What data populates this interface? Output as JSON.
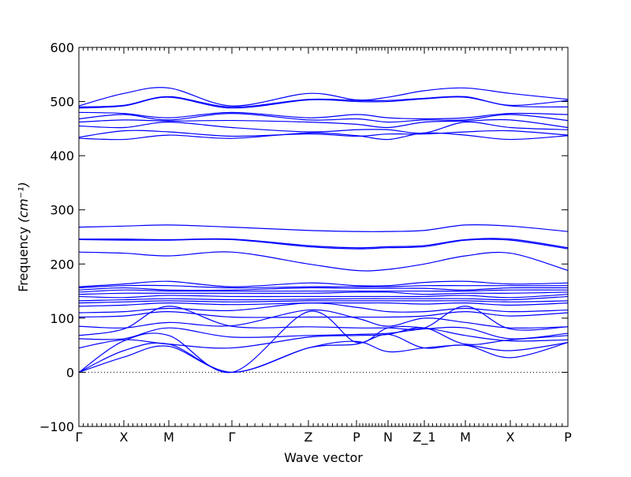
{
  "chart_data": {
    "type": "line",
    "title": "",
    "xlabel": "Wave vector",
    "ylabel": "Frequency ",
    "ylabel_unit": "(cm⁻¹)",
    "ylim": [
      -100,
      600
    ],
    "xlim": [
      0,
      620
    ],
    "y_ticks": [
      -100,
      0,
      100,
      200,
      300,
      400,
      500,
      600
    ],
    "zero_line": {
      "y": 0,
      "style": "dotted"
    },
    "grid": false,
    "legend": "none",
    "line_color": "#0000ff",
    "high_symmetry_points": [
      {
        "label": "Γ",
        "x": 0
      },
      {
        "label": "X",
        "x": 57
      },
      {
        "label": "M",
        "x": 114
      },
      {
        "label": "Γ",
        "x": 194
      },
      {
        "label": "Z",
        "x": 291
      },
      {
        "label": "P",
        "x": 352
      },
      {
        "label": "N",
        "x": 392
      },
      {
        "label": "Z_1",
        "x": 438
      },
      {
        "label": "M",
        "x": 490
      },
      {
        "label": "X",
        "x": 547
      },
      {
        "label": "P",
        "x": 620
      }
    ],
    "series": [
      {
        "x": [
          0,
          57,
          114,
          194,
          291,
          352,
          392,
          438,
          490,
          547,
          620
        ],
        "values": [
          0,
          28,
          48,
          0,
          45,
          52,
          70,
          45,
          50,
          27,
          55
        ]
      },
      {
        "x": [
          0,
          57,
          114,
          194,
          291,
          352,
          392,
          438,
          490,
          547,
          620
        ],
        "values": [
          0,
          40,
          52,
          0,
          45,
          57,
          38,
          45,
          50,
          40,
          55
        ]
      },
      {
        "x": [
          0,
          57,
          114,
          194,
          291,
          352,
          392,
          438,
          490,
          547,
          620
        ],
        "values": [
          0,
          58,
          68,
          0,
          112,
          55,
          82,
          82,
          68,
          58,
          60
        ]
      },
      {
        "x": [
          0,
          57,
          114,
          194,
          291,
          352,
          392,
          438,
          490,
          547,
          620
        ],
        "values": [
          45,
          60,
          52,
          45,
          65,
          68,
          70,
          82,
          52,
          60,
          68
        ]
      },
      {
        "x": [
          0,
          57,
          114,
          194,
          291,
          352,
          392,
          438,
          490,
          547,
          620
        ],
        "values": [
          62,
          62,
          82,
          65,
          68,
          70,
          72,
          80,
          82,
          62,
          72
        ]
      },
      {
        "x": [
          0,
          57,
          114,
          194,
          291,
          352,
          392,
          438,
          490,
          547,
          620
        ],
        "values": [
          68,
          80,
          122,
          85,
          84,
          82,
          82,
          82,
          122,
          80,
          84
        ]
      },
      {
        "x": [
          0,
          57,
          114,
          194,
          291,
          352,
          392,
          438,
          490,
          547,
          620
        ],
        "values": [
          85,
          82,
          92,
          86,
          115,
          100,
          85,
          100,
          92,
          82,
          84
        ]
      },
      {
        "x": [
          0,
          57,
          114,
          194,
          291,
          352,
          392,
          438,
          490,
          547,
          620
        ],
        "values": [
          102,
          104,
          112,
          102,
          102,
          102,
          102,
          104,
          112,
          104,
          110
        ]
      },
      {
        "x": [
          0,
          57,
          114,
          194,
          291,
          352,
          392,
          438,
          490,
          547,
          620
        ],
        "values": [
          110,
          112,
          118,
          114,
          128,
          120,
          112,
          112,
          118,
          112,
          115
        ]
      },
      {
        "x": [
          0,
          57,
          114,
          194,
          291,
          352,
          392,
          438,
          490,
          547,
          620
        ],
        "values": [
          122,
          124,
          128,
          125,
          128,
          128,
          128,
          126,
          128,
          124,
          128
        ]
      },
      {
        "x": [
          0,
          57,
          114,
          194,
          291,
          352,
          392,
          438,
          490,
          547,
          620
        ],
        "values": [
          128,
          130,
          132,
          130,
          132,
          132,
          132,
          132,
          132,
          130,
          132
        ]
      },
      {
        "x": [
          0,
          57,
          114,
          194,
          291,
          352,
          392,
          438,
          490,
          547,
          620
        ],
        "values": [
          132,
          134,
          136,
          134,
          135,
          136,
          136,
          136,
          136,
          134,
          140
        ]
      },
      {
        "x": [
          0,
          57,
          114,
          194,
          291,
          352,
          392,
          438,
          490,
          547,
          620
        ],
        "values": [
          140,
          138,
          142,
          140,
          140,
          140,
          140,
          140,
          142,
          138,
          144
        ]
      },
      {
        "x": [
          0,
          57,
          114,
          194,
          291,
          352,
          392,
          438,
          490,
          547,
          620
        ],
        "values": [
          144,
          146,
          146,
          146,
          146,
          148,
          148,
          144,
          146,
          146,
          148
        ]
      },
      {
        "x": [
          0,
          57,
          114,
          194,
          291,
          352,
          392,
          438,
          490,
          547,
          620
        ],
        "values": [
          148,
          152,
          150,
          150,
          150,
          150,
          150,
          150,
          150,
          152,
          152
        ]
      },
      {
        "x": [
          0,
          57,
          114,
          194,
          291,
          352,
          392,
          438,
          490,
          547,
          620
        ],
        "values": [
          152,
          156,
          152,
          152,
          156,
          155,
          155,
          155,
          152,
          156,
          156
        ]
      },
      {
        "x": [
          0,
          57,
          114,
          194,
          291,
          352,
          392,
          438,
          490,
          547,
          620
        ],
        "values": [
          156,
          160,
          160,
          156,
          158,
          158,
          158,
          160,
          160,
          160,
          160
        ]
      },
      {
        "x": [
          0,
          57,
          114,
          194,
          291,
          352,
          392,
          438,
          490,
          547,
          620
        ],
        "values": [
          158,
          163,
          168,
          158,
          165,
          160,
          160,
          166,
          168,
          163,
          165
        ]
      },
      {
        "x": [
          0,
          57,
          114,
          194,
          291,
          352,
          392,
          438,
          490,
          547,
          620
        ],
        "values": [
          222,
          220,
          215,
          222,
          200,
          188,
          190,
          200,
          215,
          220,
          188
        ]
      },
      {
        "x": [
          0,
          57,
          114,
          194,
          291,
          352,
          392,
          438,
          490,
          547,
          620
        ],
        "values": [
          245,
          244,
          244,
          245,
          232,
          228,
          230,
          232,
          244,
          244,
          228
        ]
      },
      {
        "x": [
          0,
          57,
          114,
          194,
          291,
          352,
          392,
          438,
          490,
          547,
          620
        ],
        "values": [
          246,
          246,
          245,
          246,
          234,
          230,
          232,
          234,
          245,
          246,
          230
        ]
      },
      {
        "x": [
          0,
          57,
          114,
          194,
          291,
          352,
          392,
          438,
          490,
          547,
          620
        ],
        "values": [
          268,
          270,
          272,
          268,
          262,
          260,
          260,
          262,
          272,
          270,
          260
        ]
      },
      {
        "x": [
          0,
          57,
          114,
          194,
          291,
          352,
          392,
          438,
          490,
          547,
          620
        ],
        "values": [
          432,
          430,
          438,
          432,
          442,
          437,
          430,
          442,
          438,
          430,
          437
        ]
      },
      {
        "x": [
          0,
          57,
          114,
          194,
          291,
          352,
          392,
          438,
          490,
          547,
          620
        ],
        "values": [
          434,
          446,
          444,
          436,
          440,
          436,
          440,
          440,
          444,
          446,
          438
        ]
      },
      {
        "x": [
          0,
          57,
          114,
          194,
          291,
          352,
          392,
          438,
          490,
          547,
          620
        ],
        "values": [
          455,
          452,
          462,
          452,
          444,
          448,
          448,
          442,
          462,
          452,
          448
        ]
      },
      {
        "x": [
          0,
          57,
          114,
          194,
          291,
          352,
          392,
          438,
          490,
          547,
          620
        ],
        "values": [
          462,
          466,
          464,
          465,
          462,
          458,
          452,
          462,
          464,
          466,
          452
        ]
      },
      {
        "x": [
          0,
          57,
          114,
          194,
          291,
          352,
          392,
          438,
          490,
          547,
          620
        ],
        "values": [
          468,
          476,
          466,
          478,
          466,
          468,
          462,
          466,
          466,
          476,
          465
        ]
      },
      {
        "x": [
          0,
          57,
          114,
          194,
          291,
          352,
          392,
          438,
          490,
          547,
          620
        ],
        "values": [
          480,
          478,
          470,
          480,
          470,
          476,
          470,
          468,
          470,
          478,
          476
        ]
      },
      {
        "x": [
          0,
          57,
          114,
          194,
          291,
          352,
          392,
          438,
          490,
          547,
          620
        ],
        "values": [
          488,
          492,
          508,
          488,
          503,
          500,
          500,
          505,
          508,
          492,
          490
        ]
      },
      {
        "x": [
          0,
          57,
          114,
          194,
          291,
          352,
          392,
          438,
          490,
          547,
          620
        ],
        "values": [
          490,
          493,
          509,
          490,
          504,
          502,
          502,
          506,
          509,
          493,
          502
        ]
      },
      {
        "x": [
          0,
          57,
          114,
          194,
          291,
          352,
          392,
          438,
          490,
          547,
          620
        ],
        "values": [
          492,
          515,
          525,
          492,
          515,
          503,
          508,
          520,
          525,
          515,
          504
        ]
      }
    ]
  }
}
